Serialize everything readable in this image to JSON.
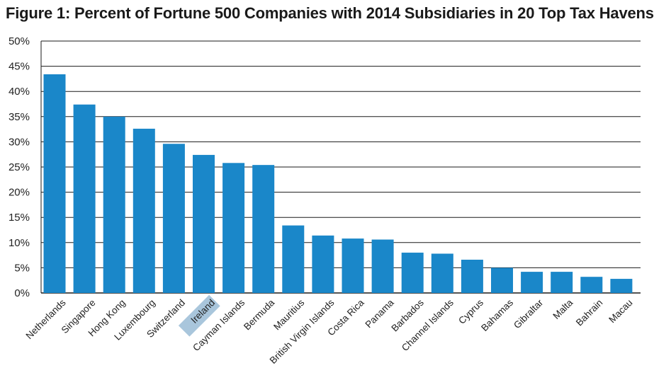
{
  "chart_data": {
    "type": "bar",
    "title": "Figure 1: Percent of Fortune 500 Companies with 2014 Subsidiaries in 20 Top Tax Havens",
    "xlabel": "",
    "ylabel": "",
    "ylim": [
      0,
      50
    ],
    "y_ticks": [
      "0%",
      "5%",
      "10%",
      "15%",
      "20%",
      "25%",
      "30%",
      "35%",
      "40%",
      "45%",
      "50%"
    ],
    "grid": true,
    "categories": [
      "Netherlands",
      "Singapore",
      "Hong Kong",
      "Luxembourg",
      "Switzerland",
      "Ireland",
      "Cayman Islands",
      "Bermuda",
      "Mauritius",
      "British Virgin Islands",
      "Costa Rica",
      "Panama",
      "Barbados",
      "Channel Islands",
      "Cyprus",
      "Bahamas",
      "Gibraltar",
      "Malta",
      "Bahrain",
      "Macau"
    ],
    "values": [
      43.4,
      37.4,
      35.0,
      32.6,
      29.6,
      27.4,
      25.8,
      25.4,
      13.4,
      11.4,
      10.8,
      10.6,
      8.0,
      7.8,
      6.6,
      5.0,
      4.2,
      4.2,
      3.2,
      2.8
    ],
    "highlighted_category": "Ireland",
    "colors": {
      "bar": "#1a87c9",
      "highlight_label_bg": "#a9c6dc",
      "grid": "#1a1a1a"
    }
  }
}
